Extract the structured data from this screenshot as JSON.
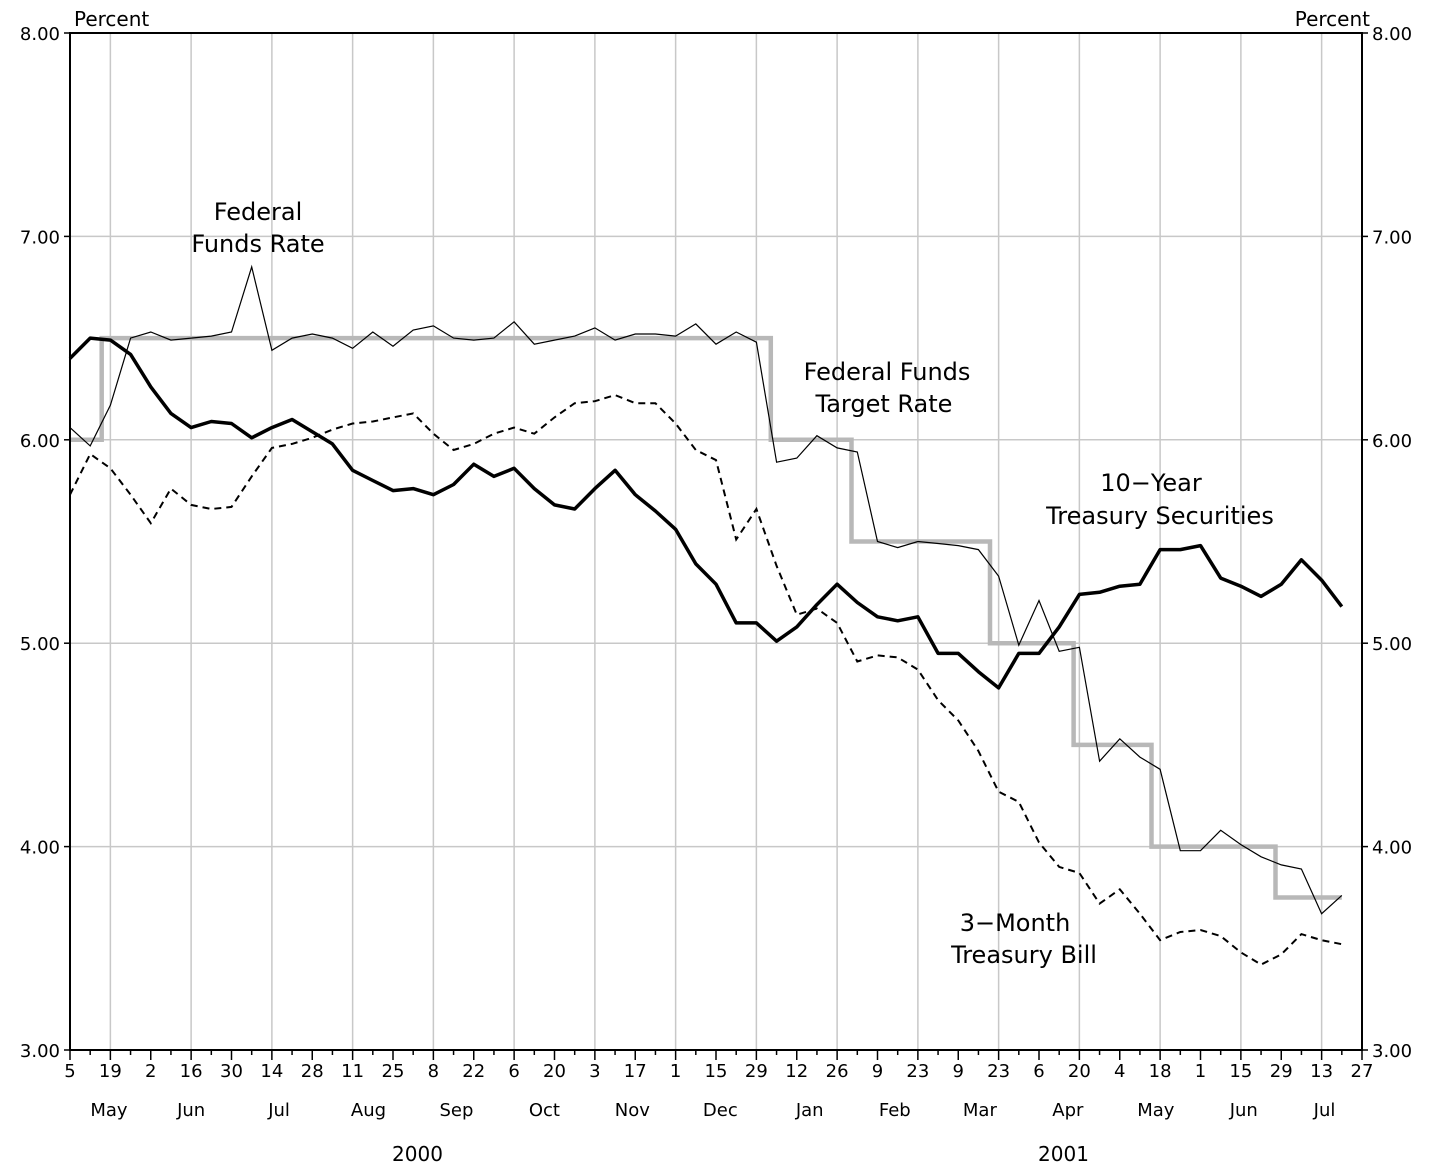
{
  "chart_data": {
    "type": "line",
    "title": "",
    "left_unit_label": "Percent",
    "right_unit_label": "Percent",
    "ylim": [
      3.0,
      8.0
    ],
    "y_ticks": [
      "3.00",
      "4.00",
      "5.00",
      "6.00",
      "7.00",
      "8.00"
    ],
    "grid": true,
    "x_day_ticks": [
      "5",
      "19",
      "2",
      "16",
      "30",
      "14",
      "28",
      "11",
      "25",
      "8",
      "22",
      "6",
      "20",
      "3",
      "17",
      "1",
      "15",
      "29",
      "12",
      "26",
      "9",
      "23",
      "9",
      "23",
      "6",
      "20",
      "4",
      "18",
      "1",
      "15",
      "29",
      "13",
      "27"
    ],
    "x_months": [
      "May",
      "Jun",
      "Jul",
      "Aug",
      "Sep",
      "Oct",
      "Nov",
      "Dec",
      "Jan",
      "Feb",
      "Mar",
      "Apr",
      "May",
      "Jun",
      "Jul"
    ],
    "x_years": [
      "2000",
      "2001"
    ],
    "x_dates": [
      "2000-05-05",
      "2000-05-12",
      "2000-05-19",
      "2000-05-26",
      "2000-06-02",
      "2000-06-09",
      "2000-06-16",
      "2000-06-23",
      "2000-06-30",
      "2000-07-07",
      "2000-07-14",
      "2000-07-21",
      "2000-07-28",
      "2000-08-04",
      "2000-08-11",
      "2000-08-18",
      "2000-08-25",
      "2000-09-01",
      "2000-09-08",
      "2000-09-15",
      "2000-09-22",
      "2000-09-29",
      "2000-10-06",
      "2000-10-13",
      "2000-10-20",
      "2000-10-27",
      "2000-11-03",
      "2000-11-10",
      "2000-11-17",
      "2000-11-24",
      "2000-12-01",
      "2000-12-08",
      "2000-12-15",
      "2000-12-22",
      "2000-12-29",
      "2001-01-05",
      "2001-01-12",
      "2001-01-19",
      "2001-01-26",
      "2001-02-02",
      "2001-02-09",
      "2001-02-16",
      "2001-02-23",
      "2001-03-02",
      "2001-03-09",
      "2001-03-16",
      "2001-03-23",
      "2001-03-30",
      "2001-04-06",
      "2001-04-13",
      "2001-04-20",
      "2001-04-27",
      "2001-05-04",
      "2001-05-11",
      "2001-05-18",
      "2001-05-25",
      "2001-06-01",
      "2001-06-08",
      "2001-06-15",
      "2001-06-22",
      "2001-06-29",
      "2001-07-06",
      "2001-07-13",
      "2001-07-20"
    ],
    "series": [
      {
        "name": "10-Year Treasury Securities",
        "style": "thick-black",
        "color": "#000000",
        "label_lines": [
          "10−Year",
          "Treasury Securities"
        ],
        "values": [
          6.4,
          6.5,
          6.49,
          6.42,
          6.26,
          6.13,
          6.06,
          6.09,
          6.08,
          6.01,
          6.06,
          6.1,
          6.04,
          5.98,
          5.85,
          5.8,
          5.75,
          5.76,
          5.73,
          5.78,
          5.88,
          5.82,
          5.86,
          5.76,
          5.68,
          5.66,
          5.76,
          5.85,
          5.73,
          5.65,
          5.56,
          5.39,
          5.29,
          5.1,
          5.1,
          5.01,
          5.08,
          5.19,
          5.29,
          5.2,
          5.13,
          5.11,
          5.13,
          4.95,
          4.95,
          4.86,
          4.78,
          4.95,
          4.95,
          5.08,
          5.24,
          5.25,
          5.28,
          5.29,
          5.46,
          5.46,
          5.48,
          5.32,
          5.28,
          5.23,
          5.29,
          5.41,
          5.31,
          5.18
        ]
      },
      {
        "name": "Federal Funds Rate",
        "style": "thin-black",
        "color": "#000000",
        "label_lines": [
          "Federal",
          "Funds Rate"
        ],
        "values": [
          6.06,
          5.97,
          6.17,
          6.5,
          6.53,
          6.49,
          6.5,
          6.51,
          6.53,
          6.85,
          6.44,
          6.5,
          6.52,
          6.5,
          6.45,
          6.53,
          6.46,
          6.54,
          6.56,
          6.5,
          6.49,
          6.5,
          6.58,
          6.47,
          6.49,
          6.51,
          6.55,
          6.49,
          6.52,
          6.52,
          6.51,
          6.57,
          6.47,
          6.53,
          6.48,
          5.89,
          5.91,
          6.02,
          5.96,
          5.94,
          5.5,
          5.47,
          5.5,
          5.49,
          5.48,
          5.46,
          5.33,
          4.99,
          5.21,
          4.96,
          4.98,
          4.42,
          4.53,
          4.44,
          4.38,
          3.98,
          3.98,
          4.08,
          4.01,
          3.95,
          3.91,
          3.89,
          3.67,
          3.76
        ]
      },
      {
        "name": "3-Month Treasury Bill",
        "style": "dashed-black",
        "color": "#000000",
        "label_lines": [
          "3−Month",
          "Treasury Bill"
        ],
        "values": [
          5.73,
          5.93,
          5.86,
          5.73,
          5.59,
          5.76,
          5.68,
          5.66,
          5.67,
          5.82,
          5.96,
          5.98,
          6.01,
          6.05,
          6.08,
          6.09,
          6.11,
          6.13,
          6.03,
          5.95,
          5.98,
          6.03,
          6.06,
          6.03,
          6.11,
          6.18,
          6.19,
          6.22,
          6.18,
          6.18,
          6.08,
          5.95,
          5.9,
          5.51,
          5.66,
          5.38,
          5.14,
          5.17,
          5.1,
          4.91,
          4.94,
          4.93,
          4.87,
          4.72,
          4.62,
          4.47,
          4.27,
          4.22,
          4.02,
          3.9,
          3.87,
          3.72,
          3.79,
          3.67,
          3.54,
          3.58,
          3.59,
          3.56,
          3.48,
          3.42,
          3.47,
          3.57,
          3.54,
          3.52
        ]
      },
      {
        "name": "Federal Funds Target Rate",
        "style": "thick-gray-step",
        "color": "#b8b8b8",
        "label_lines": [
          "Federal Funds",
          "Target Rate"
        ],
        "step_changes": [
          {
            "date": "2000-05-05",
            "value": 6.0
          },
          {
            "date": "2000-05-16",
            "value": 6.5
          },
          {
            "date": "2001-01-03",
            "value": 6.0
          },
          {
            "date": "2001-01-31",
            "value": 5.5
          },
          {
            "date": "2001-03-20",
            "value": 5.0
          },
          {
            "date": "2001-04-18",
            "value": 4.5
          },
          {
            "date": "2001-05-15",
            "value": 4.0
          },
          {
            "date": "2001-06-27",
            "value": 3.75
          },
          {
            "date": "2001-07-20",
            "value": 3.75
          }
        ]
      }
    ]
  }
}
